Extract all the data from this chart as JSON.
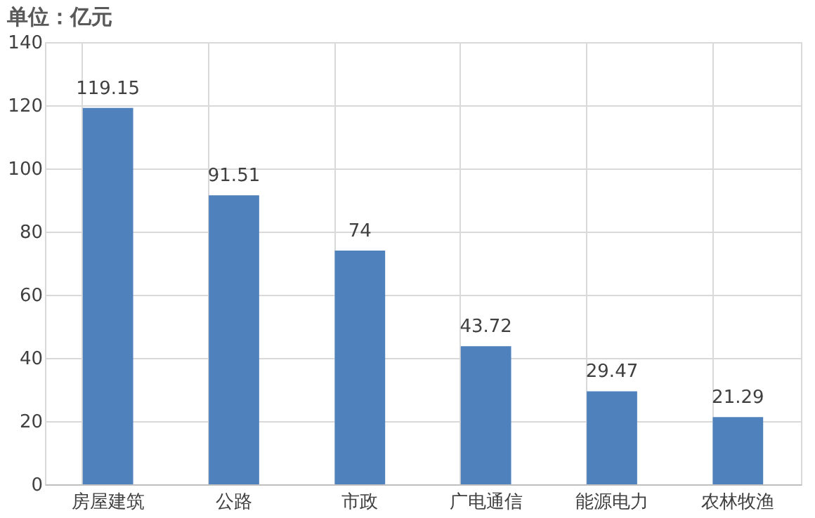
{
  "chart_data": {
    "type": "bar",
    "title": "单位：亿元",
    "categories": [
      "房屋建筑",
      "公路",
      "市政",
      "广电通信",
      "能源电力",
      "农林牧渔"
    ],
    "values": [
      119.15,
      91.51,
      74,
      43.72,
      29.47,
      21.29
    ],
    "color": "#4f81bd",
    "ylim": [
      0,
      140
    ],
    "yticks": [
      0,
      20,
      40,
      60,
      80,
      100,
      120,
      140
    ],
    "grid": true,
    "data_labels": true
  }
}
